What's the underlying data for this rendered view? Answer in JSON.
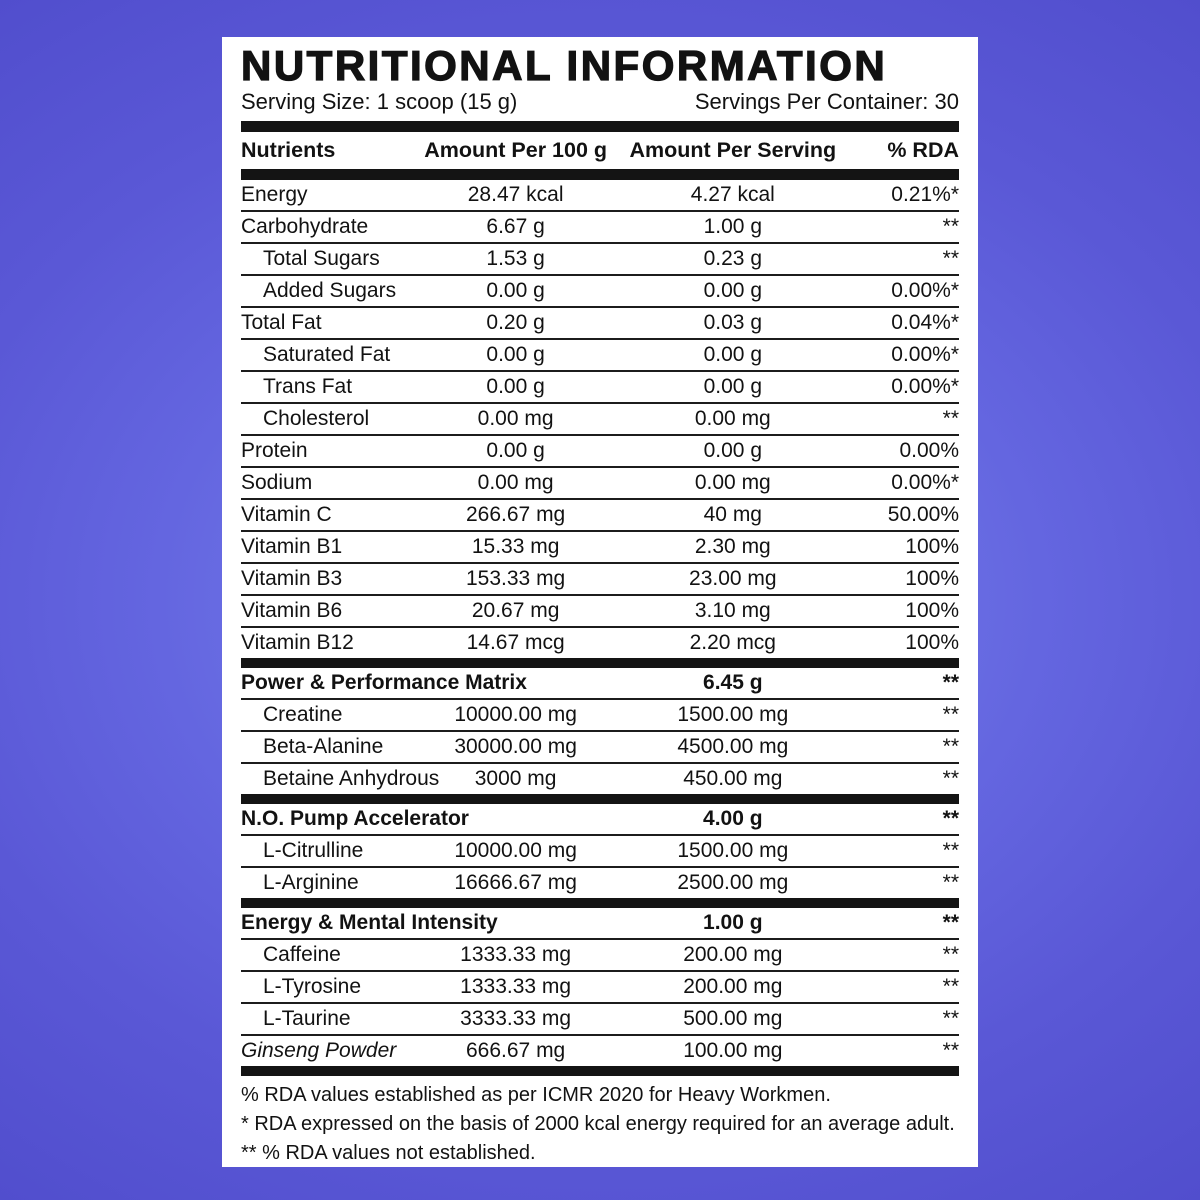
{
  "colors": {
    "background_center": "#7b87ec",
    "background_edge": "#514ecd",
    "card": "#ffffff",
    "ink": "#121212"
  },
  "label": {
    "title": "NUTRITIONAL INFORMATION",
    "serving_size": "Serving Size: 1 scoop (15 g)",
    "servings_per_container": "Servings Per Container: 30",
    "columns": [
      "Nutrients",
      "Amount Per 100 g",
      "Amount Per Serving",
      "% RDA"
    ],
    "rows": [
      {
        "name": "Energy",
        "per100g": "28.47 kcal",
        "perServing": "4.27 kcal",
        "rda": "0.21%*",
        "style": "item"
      },
      {
        "name": "Carbohydrate",
        "per100g": "6.67 g",
        "perServing": "1.00 g",
        "rda": "**",
        "style": "item"
      },
      {
        "name": "Total Sugars",
        "per100g": "1.53 g",
        "perServing": "0.23 g",
        "rda": "**",
        "style": "sub"
      },
      {
        "name": "Added Sugars",
        "per100g": "0.00 g",
        "perServing": "0.00 g",
        "rda": "0.00%*",
        "style": "sub"
      },
      {
        "name": "Total Fat",
        "per100g": "0.20 g",
        "perServing": "0.03 g",
        "rda": "0.04%*",
        "style": "item"
      },
      {
        "name": "Saturated Fat",
        "per100g": "0.00 g",
        "perServing": "0.00 g",
        "rda": "0.00%*",
        "style": "sub"
      },
      {
        "name": "Trans Fat",
        "per100g": "0.00 g",
        "perServing": "0.00 g",
        "rda": "0.00%*",
        "style": "sub"
      },
      {
        "name": "Cholesterol",
        "per100g": "0.00 mg",
        "perServing": "0.00 mg",
        "rda": "**",
        "style": "sub"
      },
      {
        "name": "Protein",
        "per100g": "0.00 g",
        "perServing": "0.00 g",
        "rda": "0.00%",
        "style": "item"
      },
      {
        "name": "Sodium",
        "per100g": "0.00 mg",
        "perServing": "0.00 mg",
        "rda": "0.00%*",
        "style": "item"
      },
      {
        "name": "Vitamin C",
        "per100g": "266.67 mg",
        "perServing": "40 mg",
        "rda": "50.00%",
        "style": "item"
      },
      {
        "name": "Vitamin B1",
        "per100g": "15.33 mg",
        "perServing": "2.30 mg",
        "rda": "100%",
        "style": "item"
      },
      {
        "name": "Vitamin B3",
        "per100g": "153.33 mg",
        "perServing": "23.00 mg",
        "rda": "100%",
        "style": "item"
      },
      {
        "name": "Vitamin B6",
        "per100g": "20.67 mg",
        "perServing": "3.10 mg",
        "rda": "100%",
        "style": "item"
      },
      {
        "name": "Vitamin B12",
        "per100g": "14.67 mcg",
        "perServing": "2.20 mcg",
        "rda": "100%",
        "style": "item"
      },
      {
        "name": "Power & Performance Matrix",
        "per100g": "",
        "perServing": "6.45 g",
        "rda": "**",
        "style": "section"
      },
      {
        "name": "Creatine",
        "per100g": "10000.00 mg",
        "perServing": "1500.00 mg",
        "rda": "**",
        "style": "sub"
      },
      {
        "name": "Beta-Alanine",
        "per100g": "30000.00 mg",
        "perServing": "4500.00 mg",
        "rda": "**",
        "style": "sub"
      },
      {
        "name": "Betaine Anhydrous",
        "per100g": "3000 mg",
        "perServing": "450.00 mg",
        "rda": "**",
        "style": "sub"
      },
      {
        "name": "N.O. Pump Accelerator",
        "per100g": "",
        "perServing": "4.00 g",
        "rda": "**",
        "style": "section"
      },
      {
        "name": "L-Citrulline",
        "per100g": "10000.00 mg",
        "perServing": "1500.00 mg",
        "rda": "**",
        "style": "sub"
      },
      {
        "name": "L-Arginine",
        "per100g": "16666.67 mg",
        "perServing": "2500.00 mg",
        "rda": "**",
        "style": "sub"
      },
      {
        "name": "Energy & Mental Intensity",
        "per100g": "",
        "perServing": "1.00 g",
        "rda": "**",
        "style": "section"
      },
      {
        "name": "Caffeine",
        "per100g": "1333.33 mg",
        "perServing": "200.00 mg",
        "rda": "**",
        "style": "sub"
      },
      {
        "name": "L-Tyrosine",
        "per100g": "1333.33 mg",
        "perServing": "200.00 mg",
        "rda": "**",
        "style": "sub"
      },
      {
        "name": "L-Taurine",
        "per100g": "3333.33 mg",
        "perServing": "500.00 mg",
        "rda": "**",
        "style": "sub"
      },
      {
        "name": "Ginseng Powder",
        "per100g": "666.67 mg",
        "perServing": "100.00 mg",
        "rda": "**",
        "style": "botanical"
      }
    ],
    "footnotes": [
      "% RDA values established as per ICMR 2020 for Heavy Workmen.",
      "* RDA expressed on the basis of 2000 kcal energy required for an average adult.",
      "** % RDA values not established."
    ]
  }
}
